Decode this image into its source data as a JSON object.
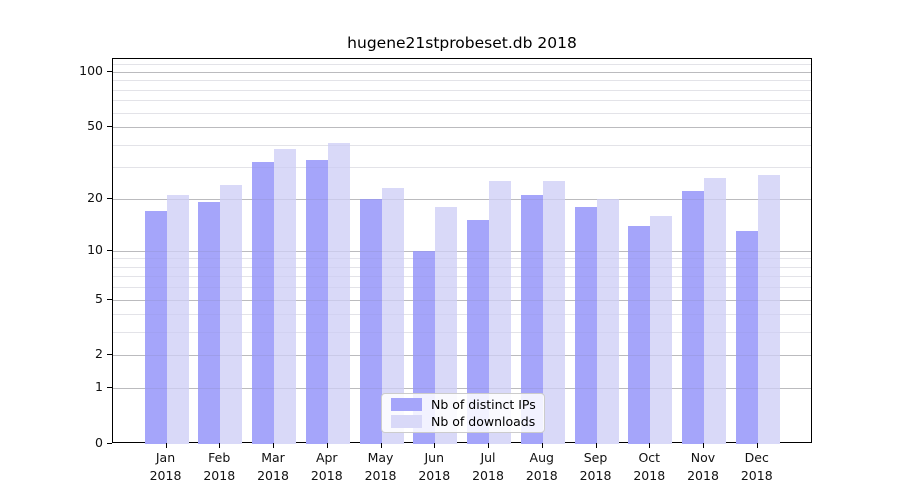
{
  "title": "hugene21stprobeset.db 2018",
  "chart_data": {
    "type": "bar",
    "title": "hugene21stprobeset.db 2018",
    "categories": [
      "Jan",
      "Feb",
      "Mar",
      "Apr",
      "May",
      "Jun",
      "Jul",
      "Aug",
      "Sep",
      "Oct",
      "Nov",
      "Dec"
    ],
    "year": "2018",
    "series": [
      {
        "name": "Nb of distinct IPs",
        "color": "#a5a5fa",
        "values": [
          17,
          19,
          32,
          33,
          20,
          10,
          15,
          21,
          18,
          14,
          22,
          13
        ]
      },
      {
        "name": "Nb of downloads",
        "color": "#d9d9f8",
        "values": [
          21,
          24,
          38,
          41,
          23,
          18,
          25,
          25,
          20,
          16,
          26,
          27
        ]
      }
    ],
    "yscale": "log1p",
    "yticks": [
      0,
      1,
      2,
      5,
      10,
      20,
      50,
      100
    ],
    "minor_gridlines": [
      3,
      4,
      6,
      7,
      8,
      9,
      30,
      40,
      60,
      70,
      80,
      90,
      110
    ],
    "ylim": [
      0,
      117.6
    ],
    "grid": true,
    "legend_position": "lower center",
    "axis_color": "#000000",
    "major_grid_color": "#c8c8c8",
    "minor_grid_color": "#ebebee"
  }
}
